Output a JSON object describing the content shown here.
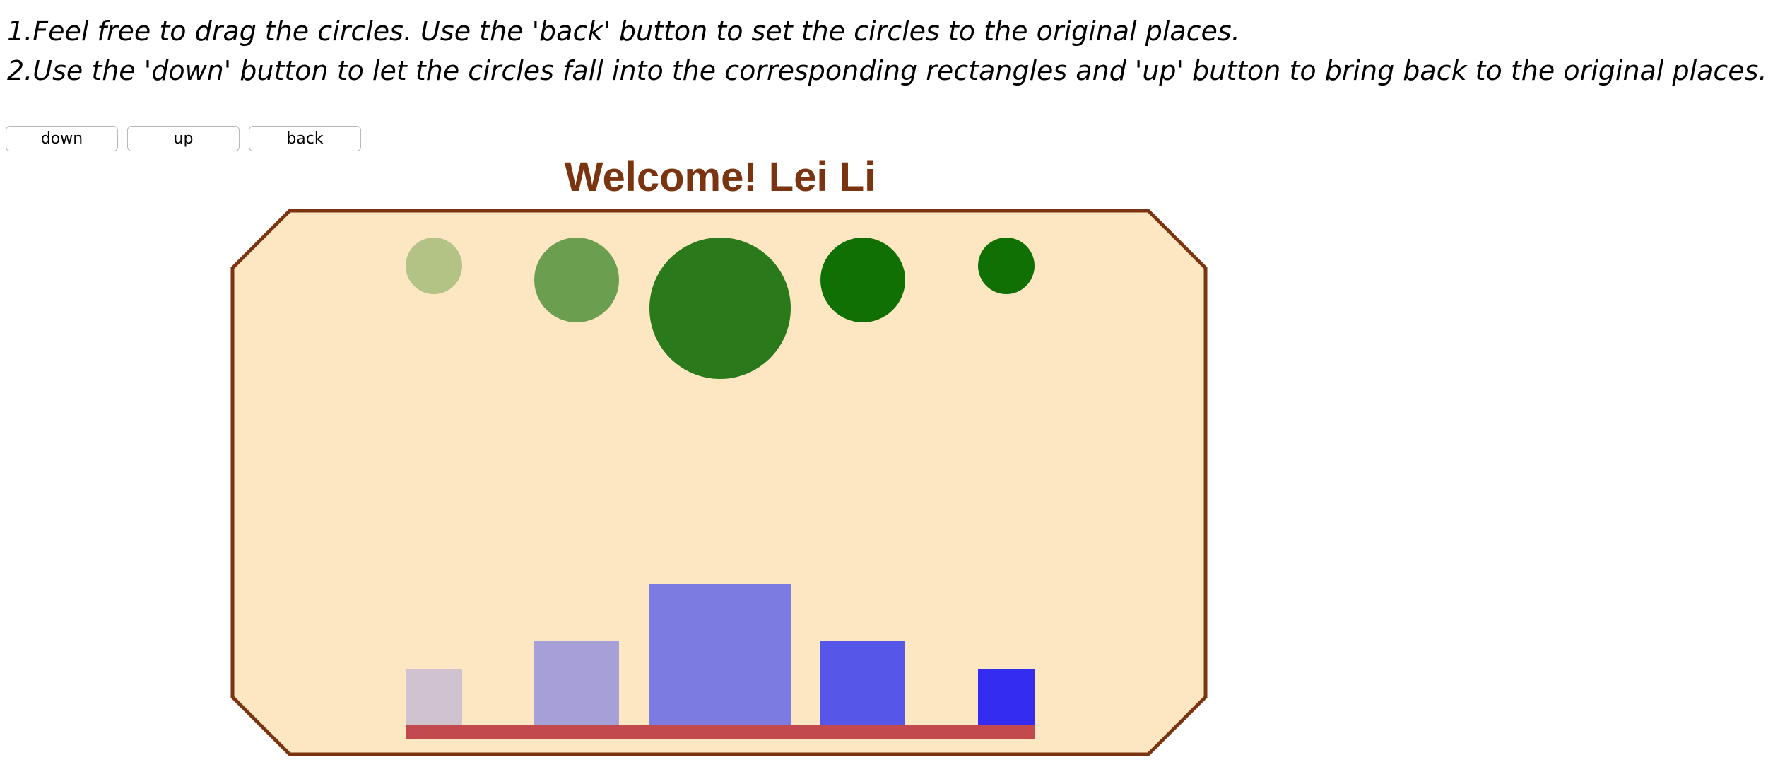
{
  "instructions": {
    "line1": "1.Feel free to drag the circles. Use the 'back' button to set the circles to the original places.",
    "line2": "2.Use the 'down' button to let the circles fall into the corresponding rectangles and 'up' button to bring back to the original places."
  },
  "controls": {
    "down_label": "down",
    "up_label": "up",
    "back_label": "back"
  },
  "stage": {
    "title": "Welcome! Lei Li",
    "title_color": "#7a3510",
    "panel_fill": "#fde6c2",
    "panel_border": "#7a3510",
    "base_bar_color": "#c24a4e"
  },
  "circles": [
    {
      "name": "circle-1",
      "color": "#b3c386"
    },
    {
      "name": "circle-2",
      "color": "#6b9e4e"
    },
    {
      "name": "circle-3",
      "color": "#2a7a1b"
    },
    {
      "name": "circle-4",
      "color": "#117004"
    },
    {
      "name": "circle-5",
      "color": "#117004"
    }
  ],
  "rectangles": [
    {
      "name": "rectangle-1",
      "color": "#d1c2d0"
    },
    {
      "name": "rectangle-2",
      "color": "#a79fd8"
    },
    {
      "name": "rectangle-3",
      "color": "#7b7be1"
    },
    {
      "name": "rectangle-4",
      "color": "#5656e8"
    },
    {
      "name": "rectangle-5",
      "color": "#352cf2"
    }
  ]
}
